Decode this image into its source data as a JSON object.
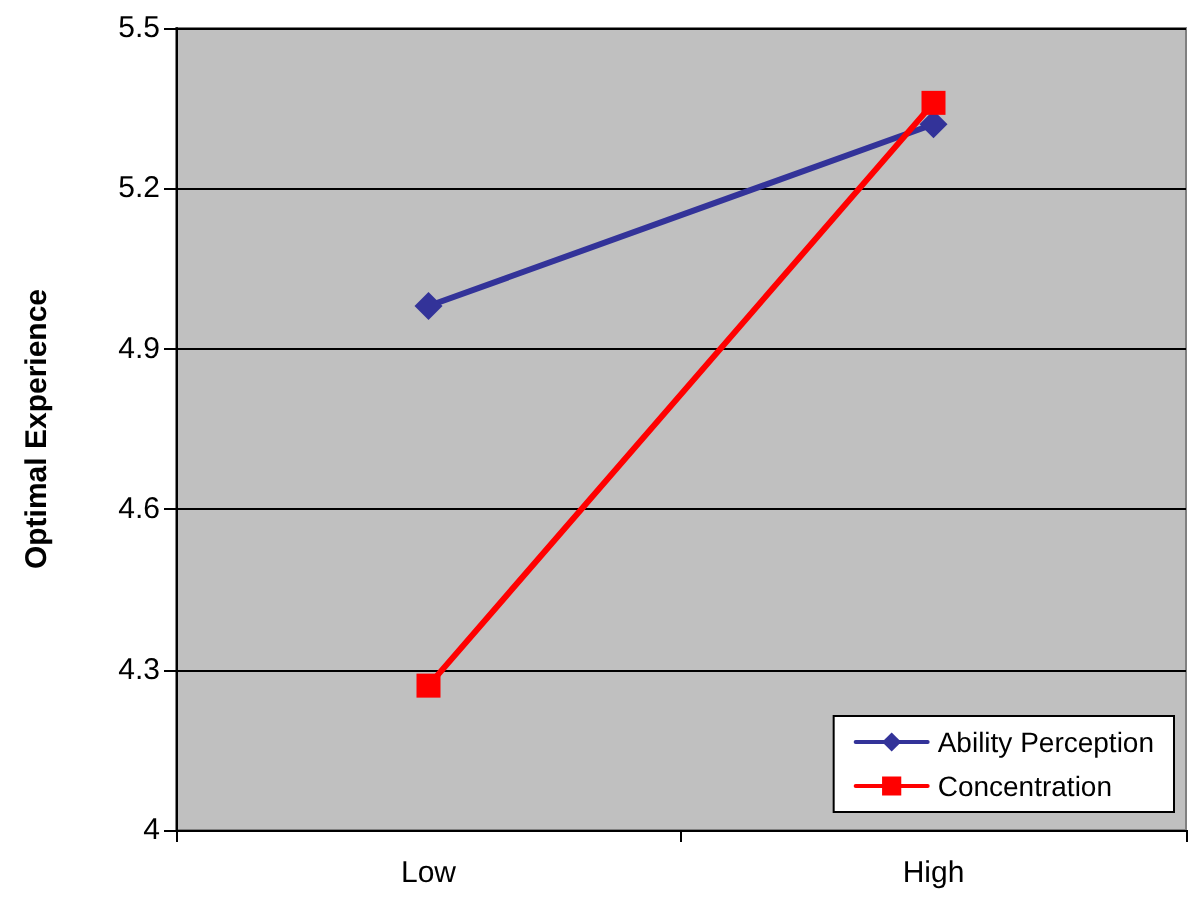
{
  "chart_data": {
    "type": "line",
    "ylabel": "Optimal Experience",
    "categories": [
      "Low",
      "High"
    ],
    "series": [
      {
        "name": "Ability Perception",
        "color": "#333399",
        "marker": "diamond",
        "values": [
          4.98,
          5.32
        ]
      },
      {
        "name": "Concentration",
        "color": "#ff0000",
        "marker": "square",
        "values": [
          4.27,
          5.36
        ]
      }
    ],
    "ylim": [
      4,
      5.5
    ],
    "yticks": [
      4,
      4.3,
      4.6,
      4.9,
      5.2,
      5.5
    ],
    "grid": "y",
    "legend": "bottom right",
    "line_style": "solid"
  }
}
